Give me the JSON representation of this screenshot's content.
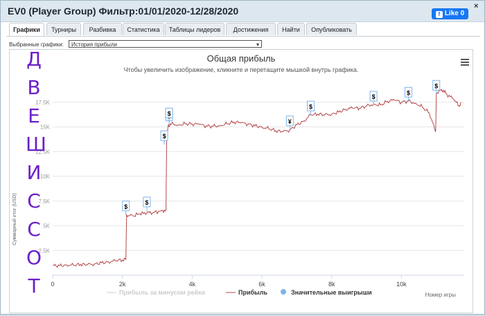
{
  "window": {
    "title": "EV0 (Player Group) Фильтр:01/01/2020-12/28/2020",
    "like_label": "Like 0",
    "close_glyph": "×"
  },
  "tabs": [
    {
      "label": "Графики",
      "active": true
    },
    {
      "label": "Турниры",
      "active": false
    },
    {
      "label": "Разбивка",
      "active": false
    },
    {
      "label": "Статистика",
      "active": false
    },
    {
      "label": "Таблицы лидеров",
      "active": false
    },
    {
      "label": "Достижения",
      "active": false
    },
    {
      "label": "Найти",
      "active": false
    },
    {
      "label": "Опубликовать",
      "active": false
    }
  ],
  "graph_select": {
    "label": "Выбранные графики:",
    "value": "История прибыли"
  },
  "chart_menu_icon": "hamburger-menu-icon",
  "overlay_letters": [
    "Д",
    "В",
    "Е",
    "Ш",
    "И",
    "С",
    "С",
    "О",
    "Т"
  ],
  "overlay_color": "#6b21c8",
  "chart_data": {
    "type": "line",
    "title": "Общая прибыль",
    "subtitle": "Чтобы увеличить изображение, кликните и перетащите мышкой внутрь графика.",
    "xlabel": "Номер игры",
    "ylabel": "Суммарный итог (USD)",
    "xlim": [
      0,
      11800
    ],
    "ylim": [
      0,
      20000
    ],
    "x_ticks": [
      "0",
      "2k",
      "4k",
      "6k",
      "8k",
      "10k"
    ],
    "y_ticks": [
      "2.5K",
      "5K",
      "7.5K",
      "10K",
      "12.5K",
      "15K",
      "17.5K"
    ],
    "series": [
      {
        "name": "Прибыль за минусом рейка",
        "color": "#cccccc",
        "visible": false,
        "points": []
      },
      {
        "name": "Прибыль",
        "color": "#b5484a",
        "visible": true,
        "points": [
          [
            0,
            1000
          ],
          [
            200,
            950
          ],
          [
            400,
            1050
          ],
          [
            600,
            1000
          ],
          [
            800,
            1100
          ],
          [
            1000,
            1050
          ],
          [
            1200,
            1150
          ],
          [
            1400,
            1250
          ],
          [
            1600,
            1350
          ],
          [
            1800,
            1450
          ],
          [
            2000,
            1550
          ],
          [
            2100,
            1600
          ],
          [
            2120,
            6100
          ],
          [
            2300,
            6000
          ],
          [
            2500,
            6200
          ],
          [
            2700,
            6300
          ],
          [
            2900,
            6350
          ],
          [
            3100,
            6500
          ],
          [
            3250,
            6600
          ],
          [
            3270,
            14000
          ],
          [
            3320,
            15200
          ],
          [
            3400,
            15300
          ],
          [
            3600,
            15200
          ],
          [
            3800,
            15300
          ],
          [
            4000,
            15300
          ],
          [
            4200,
            15250
          ],
          [
            4400,
            15100
          ],
          [
            4600,
            15050
          ],
          [
            4800,
            15150
          ],
          [
            5000,
            15300
          ],
          [
            5200,
            15500
          ],
          [
            5400,
            15400
          ],
          [
            5600,
            15300
          ],
          [
            5800,
            15100
          ],
          [
            6000,
            15000
          ],
          [
            6200,
            14800
          ],
          [
            6400,
            14600
          ],
          [
            6600,
            14500
          ],
          [
            6800,
            14700
          ],
          [
            7000,
            15200
          ],
          [
            7200,
            15600
          ],
          [
            7400,
            16200
          ],
          [
            7600,
            16300
          ],
          [
            7800,
            16200
          ],
          [
            8000,
            16300
          ],
          [
            8200,
            16500
          ],
          [
            8400,
            16800
          ],
          [
            8600,
            16900
          ],
          [
            8800,
            16900
          ],
          [
            9000,
            17100
          ],
          [
            9200,
            17300
          ],
          [
            9400,
            17200
          ],
          [
            9600,
            17600
          ],
          [
            9800,
            17700
          ],
          [
            10000,
            17500
          ],
          [
            10200,
            17600
          ],
          [
            10400,
            17400
          ],
          [
            10600,
            17000
          ],
          [
            10800,
            16400
          ],
          [
            10980,
            14500
          ],
          [
            11000,
            18300
          ],
          [
            11150,
            18800
          ],
          [
            11300,
            18300
          ],
          [
            11500,
            17800
          ],
          [
            11650,
            17100
          ],
          [
            11700,
            17500
          ]
        ]
      },
      {
        "name": "Значительные выигрыши",
        "color": "#7cb5ec",
        "visible": true,
        "points": []
      }
    ],
    "annotations": [
      {
        "x": 2100,
        "y": 6100,
        "label": "$"
      },
      {
        "x": 2700,
        "y": 6500,
        "label": "$"
      },
      {
        "x": 3200,
        "y": 13200,
        "label": "$"
      },
      {
        "x": 3340,
        "y": 15200,
        "label": "$"
      },
      {
        "x": 3340,
        "y": 15500,
        "label": "$"
      },
      {
        "x": 6800,
        "y": 14700,
        "label": "¥"
      },
      {
        "x": 7400,
        "y": 16200,
        "label": "$"
      },
      {
        "x": 9200,
        "y": 17200,
        "label": "$"
      },
      {
        "x": 10200,
        "y": 17600,
        "label": "$"
      },
      {
        "x": 11000,
        "y": 18300,
        "label": "$"
      }
    ]
  }
}
